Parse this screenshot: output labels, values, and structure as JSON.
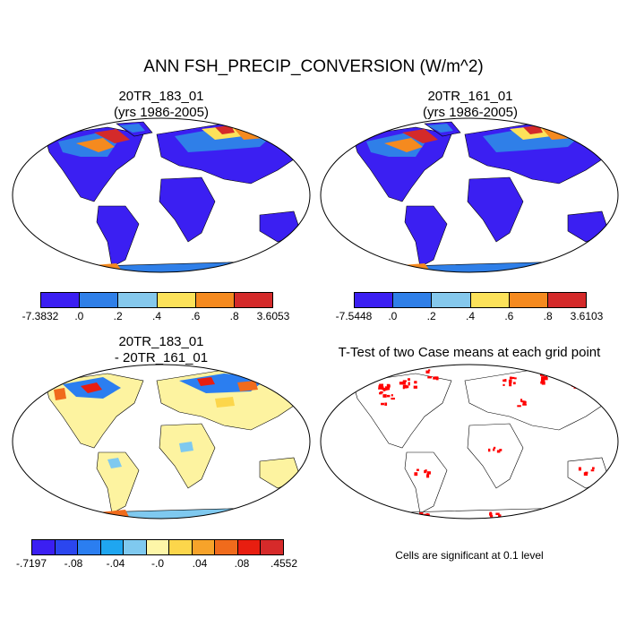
{
  "figure": {
    "title": "ANN FSH_PRECIP_CONVERSION (W/m^2)"
  },
  "panels": [
    {
      "title_line1": "20TR_183_01",
      "title_line2": "(yrs 1986-2005)"
    },
    {
      "title_line1": "20TR_161_01",
      "title_line2": "(yrs 1986-2005)"
    },
    {
      "title_line1": "20TR_183_01",
      "title_line2": "- 20TR_161_01"
    },
    {
      "title_line1": "T-Test of two Case means at each grid point",
      "title_line2": ""
    }
  ],
  "colorbars": [
    {
      "colors": [
        "#3b1ff2",
        "#2f7fe8",
        "#85c8ec",
        "#fce25a",
        "#f58a1f",
        "#d42a2a"
      ],
      "labels": [
        "-7.3832",
        ".0",
        ".2",
        ".4",
        ".6",
        ".8",
        "3.6053"
      ]
    },
    {
      "colors": [
        "#3b1ff2",
        "#2f7fe8",
        "#85c8ec",
        "#fce25a",
        "#f58a1f",
        "#d42a2a"
      ],
      "labels": [
        "-7.5448",
        ".0",
        ".2",
        ".4",
        ".6",
        ".8",
        "3.6103"
      ]
    },
    {
      "colors": [
        "#3b1ff2",
        "#2b46ef",
        "#2b7ef0",
        "#1fa6f0",
        "#7fc9ef",
        "#fdf6a8",
        "#fcd64b",
        "#f7a32a",
        "#f06b1c",
        "#e81e10",
        "#d62a2a"
      ],
      "labels": [
        "-.7197",
        "-.08",
        "-.04",
        "-.0",
        ".04",
        ".08",
        ".4552"
      ]
    }
  ],
  "ttest": {
    "note": "Cells are significant at 0.1 level",
    "significant_color": "#ff0000"
  },
  "colors": {
    "land_positive": "#3b1ff2",
    "ocean": "#ffffff",
    "diff_land": "#fdf3a0"
  }
}
